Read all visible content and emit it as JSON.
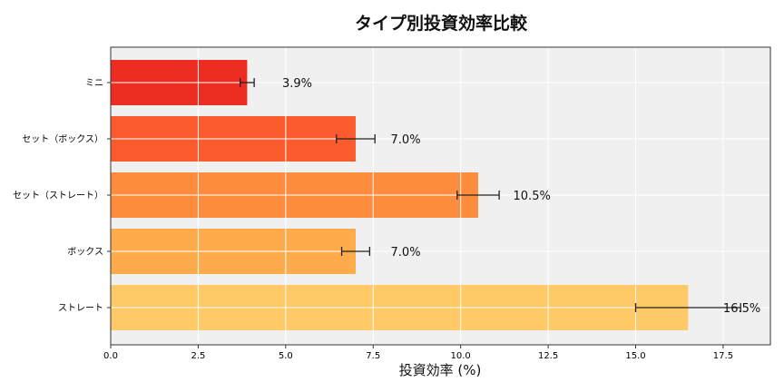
{
  "chart_data": {
    "type": "bar",
    "orientation": "horizontal",
    "title": "タイプ別投資効率比較",
    "xlabel": "投資効率 (%)",
    "ylabel": "",
    "categories": [
      "ストレート",
      "ボックス",
      "セット（ストレート）",
      "セット（ボックス）",
      "ミニ"
    ],
    "values": [
      16.5,
      7.0,
      10.5,
      7.0,
      3.9
    ],
    "errors": [
      1.5,
      0.4,
      0.6,
      0.55,
      0.2
    ],
    "data_labels": [
      "16.5%",
      "7.0%",
      "10.5%",
      "7.0%",
      "3.9%"
    ],
    "colors": [
      "#fec966",
      "#feab4b",
      "#fd8c3c",
      "#fc5b2e",
      "#ee2d22"
    ],
    "xlim": [
      0,
      18.85
    ],
    "xticks": [
      0.0,
      2.5,
      5.0,
      7.5,
      10.0,
      12.5,
      15.0,
      17.5
    ],
    "xtick_labels": [
      "0.0",
      "2.5",
      "5.0",
      "7.5",
      "10.0",
      "12.5",
      "15.0",
      "17.5"
    ],
    "grid": true,
    "background": "#f0f0f0"
  }
}
